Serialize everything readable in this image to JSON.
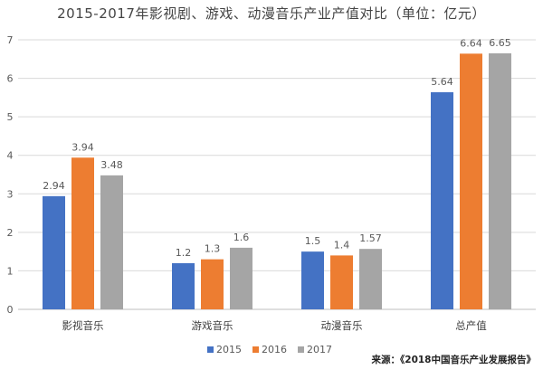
{
  "chart_data": {
    "type": "bar",
    "title": "2015-2017年影视剧、游戏、动漫音乐产业产值对比（单位：亿元）",
    "categories": [
      "影视音乐",
      "游戏音乐",
      "动漫音乐",
      "总产值"
    ],
    "series": [
      {
        "name": "2015",
        "color": "#4472C4",
        "values": [
          2.94,
          1.2,
          1.5,
          5.64
        ],
        "labels": [
          "2.94",
          "1.2",
          "1.5",
          "5.64"
        ]
      },
      {
        "name": "2016",
        "color": "#ED7D31",
        "values": [
          3.94,
          1.3,
          1.4,
          6.64
        ],
        "labels": [
          "3.94",
          "1.3",
          "1.4",
          "6.64"
        ]
      },
      {
        "name": "2017",
        "color": "#A5A5A5",
        "values": [
          3.48,
          1.6,
          1.57,
          6.65
        ],
        "labels": [
          "3.48",
          "1.6",
          "1.57",
          "6.65"
        ]
      }
    ],
    "ylim": [
      0,
      7
    ],
    "yticks": [
      0,
      1,
      2,
      3,
      4,
      5,
      6,
      7
    ],
    "grid": true,
    "legend_position": "bottom",
    "source": "来源：《2018中国音乐产业发展报告》"
  }
}
